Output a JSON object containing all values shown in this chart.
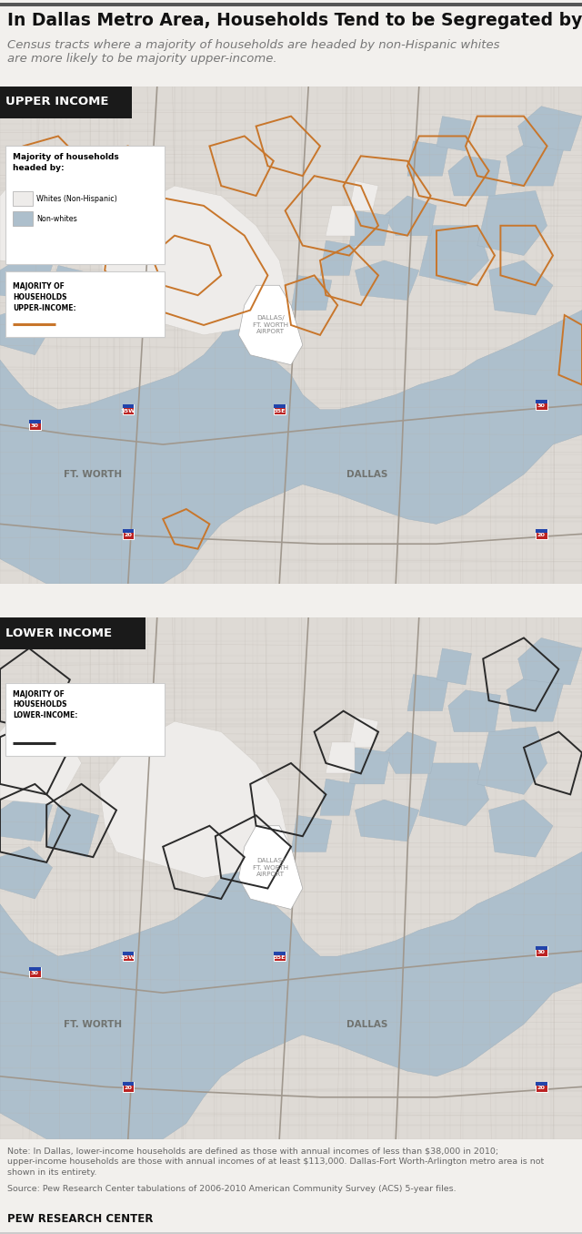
{
  "title": "In Dallas Metro Area, Households Tend to be Segregated by Race, Income",
  "subtitle": "Census tracts where a majority of households are headed by non-Hispanic whites\nare more likely to be majority upper-income.",
  "title_fontsize": 13.5,
  "subtitle_fontsize": 9.5,
  "map1_label": "UPPER INCOME",
  "map2_label": "LOWER INCOME",
  "legend_title": "Majority of households\nheaded by:",
  "legend_items": [
    "Whites (Non-Hispanic)",
    "Non-whites"
  ],
  "legend_colors": [
    "#eeecea",
    "#adbfcc"
  ],
  "upper_income_label": "MAJORITY OF\nHOUSEHOLDS\nUPPER-INCOME:",
  "lower_income_label": "MAJORITY OF\nHOUSEHOLDS\nLOWER-INCOME:",
  "orange_color": "#c8762b",
  "blue_color": "#adbfcc",
  "white_tract_color": "#eeecea",
  "bg_color": "#f2f0ed",
  "map_bg": "#dedad5",
  "road_bg": "#ccc9c4",
  "note_text": "Note: In Dallas, lower-income households are defined as those with annual incomes of less than $38,000 in 2010;\nupper-income households are those with annual incomes of at least $113,000. Dallas-Fort Worth-Arlington metro area is not\nshown in its entirety.",
  "source_text": "Source: Pew Research Center tabulations of 2006-2010 American Community Survey (ACS) 5-year files.",
  "pew_text": "PEW RESEARCH CENTER",
  "fig_bg": "#f2f0ed",
  "black_label": "#1a1a1a",
  "gray_text": "#777777",
  "separator_color": "#d0ccc8"
}
